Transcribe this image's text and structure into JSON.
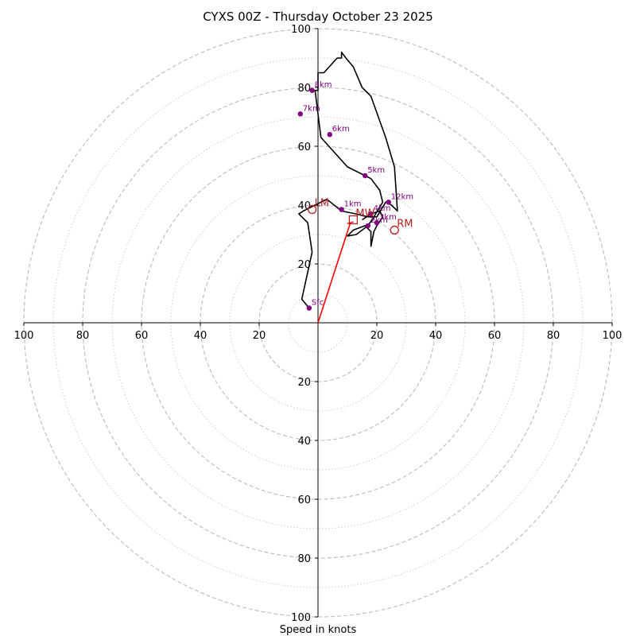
{
  "chart_data": {
    "type": "hodograph",
    "title": "CYXS 00Z - Thursday October 23 2025",
    "xlabel": "Speed in knots",
    "units": "knots",
    "range": [
      -100,
      100
    ],
    "ring_step_major": 20,
    "ring_step_minor": 10,
    "x_ticks": [
      "100",
      "80",
      "60",
      "40",
      "20",
      "20",
      "40",
      "60",
      "80",
      "100"
    ],
    "x_tick_values": [
      -100,
      -80,
      -60,
      -40,
      -20,
      20,
      40,
      60,
      80,
      100
    ],
    "y_ticks_top": [
      "100",
      "80",
      "60",
      "40",
      "20"
    ],
    "y_ticks_top_values": [
      100,
      80,
      60,
      40,
      20
    ],
    "y_ticks_bottom": [
      "20",
      "40",
      "60",
      "80",
      "100"
    ],
    "y_ticks_bottom_values": [
      -20,
      -40,
      -60,
      -80,
      -100
    ],
    "colors": {
      "trace": "#000000",
      "points": "#800080",
      "motion": "#b22222",
      "shear": "#ff0000",
      "rings": "#bbbbbb",
      "axes": "#000000"
    },
    "hodograph_trace": [
      [
        -3,
        5
      ],
      [
        -5.5,
        8
      ],
      [
        -2,
        24
      ],
      [
        -3.5,
        34
      ],
      [
        -6.5,
        37
      ],
      [
        -5,
        38
      ],
      [
        3,
        42
      ],
      [
        8,
        38
      ],
      [
        13,
        37
      ],
      [
        17,
        36
      ],
      [
        20,
        36
      ],
      [
        23,
        41
      ],
      [
        25,
        40
      ],
      [
        27,
        38
      ],
      [
        26,
        53
      ],
      [
        23,
        63
      ],
      [
        18,
        77
      ],
      [
        15,
        80
      ],
      [
        12,
        87
      ],
      [
        9.5,
        90
      ],
      [
        8,
        92
      ],
      [
        8,
        90
      ],
      [
        6.5,
        90
      ],
      [
        2,
        85
      ],
      [
        0,
        85
      ],
      [
        0,
        79
      ],
      [
        -1,
        79
      ],
      [
        0,
        71
      ],
      [
        1,
        63
      ],
      [
        10,
        53
      ],
      [
        18,
        49
      ],
      [
        21,
        45
      ],
      [
        22,
        41
      ],
      [
        19,
        36
      ],
      [
        17,
        33
      ],
      [
        13,
        30
      ],
      [
        10,
        29.5
      ],
      [
        12,
        31.5
      ],
      [
        16,
        33
      ],
      [
        18,
        31
      ],
      [
        18,
        26
      ],
      [
        19,
        31
      ],
      [
        20,
        33
      ],
      [
        22,
        36
      ],
      [
        21,
        38
      ],
      [
        18,
        37
      ],
      [
        15,
        35
      ]
    ],
    "height_points": [
      {
        "label": "Sfc",
        "u": -3,
        "v": 5
      },
      {
        "label": "1km",
        "u": 8,
        "v": 38.5
      },
      {
        "label": "2km",
        "u": 17,
        "v": 33
      },
      {
        "label": "3km",
        "u": 20,
        "v": 34
      },
      {
        "label": "4km",
        "u": 18,
        "v": 37
      },
      {
        "label": "5km",
        "u": 16,
        "v": 50
      },
      {
        "label": "6km",
        "u": 4,
        "v": 64
      },
      {
        "label": "7km",
        "u": -6,
        "v": 71
      },
      {
        "label": "8km",
        "u": -2,
        "v": 79
      },
      {
        "label": "12km",
        "u": 24,
        "v": 41
      }
    ],
    "motions": [
      {
        "label": "LM",
        "u": -2,
        "v": 38.5,
        "marker": "circle"
      },
      {
        "label": "MW",
        "u": 12,
        "v": 35,
        "marker": "square"
      },
      {
        "label": "RM",
        "u": 26,
        "v": 31.5,
        "marker": "circle"
      }
    ],
    "shear_vector": {
      "from": [
        0,
        0
      ],
      "to": [
        11,
        34
      ]
    }
  }
}
